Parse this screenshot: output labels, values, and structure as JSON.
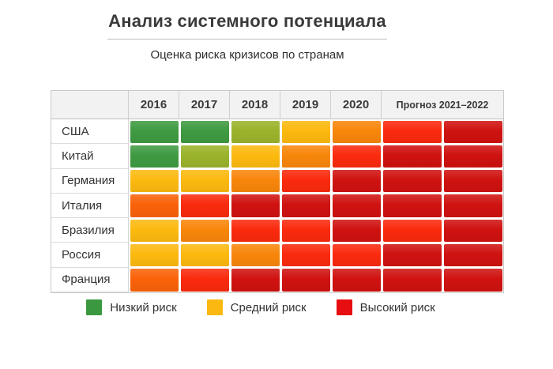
{
  "title": "Анализ системного потенциала",
  "subtitle": "Оценка риска кризисов по странам",
  "table": {
    "year_columns": [
      "2016",
      "2017",
      "2018",
      "2019",
      "2020"
    ],
    "forecast_label": "Прогноз 2021–2022",
    "rows": [
      {
        "country": "США",
        "levels": [
          "green",
          "green",
          "yellow-green",
          "yellow",
          "orange",
          "bright-red",
          "dark-red"
        ]
      },
      {
        "country": "Китай",
        "levels": [
          "green",
          "yellow-green",
          "yellow",
          "orange",
          "bright-red",
          "dark-red",
          "dark-red"
        ]
      },
      {
        "country": "Германия",
        "levels": [
          "yellow",
          "yellow",
          "orange",
          "bright-red",
          "dark-red",
          "dark-red",
          "dark-red"
        ]
      },
      {
        "country": "Италия",
        "levels": [
          "deep-orange",
          "bright-red",
          "dark-red",
          "dark-red",
          "dark-red",
          "dark-red",
          "dark-red"
        ]
      },
      {
        "country": "Бразилия",
        "levels": [
          "yellow",
          "orange",
          "bright-red",
          "bright-red",
          "dark-red",
          "bright-red",
          "dark-red"
        ]
      },
      {
        "country": "Россия",
        "levels": [
          "yellow",
          "yellow",
          "orange",
          "bright-red",
          "bright-red",
          "dark-red",
          "dark-red"
        ]
      },
      {
        "country": "Франция",
        "levels": [
          "deep-orange",
          "bright-red",
          "dark-red",
          "dark-red",
          "dark-red",
          "dark-red",
          "dark-red"
        ]
      }
    ]
  },
  "palette": {
    "green": "#3E9A41",
    "yellow-green": "#9AB32B",
    "yellow": "#FCB90F",
    "orange": "#F8860B",
    "deep-orange": "#FA6209",
    "bright-red": "#FA2A0D",
    "dark-red": "#CF1210"
  },
  "legend": {
    "items": [
      {
        "label": "Низкий риск",
        "color": "#3A9940"
      },
      {
        "label": "Средний риск",
        "color": "#FBB811"
      },
      {
        "label": "Высокий риск",
        "color": "#E70E11"
      }
    ]
  },
  "chart_data": {
    "type": "heatmap",
    "title": "Анализ системного потенциала",
    "subtitle": "Оценка риска кризисов по странам",
    "x_categories": [
      "2016",
      "2017",
      "2018",
      "2019",
      "2020",
      "Прогноз 2021–2022 (1)",
      "Прогноз 2021–2022 (2)"
    ],
    "y_categories": [
      "США",
      "Китай",
      "Германия",
      "Италия",
      "Бразилия",
      "Россия",
      "Франция"
    ],
    "value_scale": "1 = низкий риск (зелёный), 2 = жёлто-зелёный, 3 = жёлтый, 4 = оранжевый, 5 = тёмно-оранжевый, 6 = ярко-красный, 7 = высокий риск (тёмно-красный)",
    "values": [
      [
        1,
        1,
        2,
        3,
        4,
        6,
        7
      ],
      [
        1,
        2,
        3,
        4,
        6,
        7,
        7
      ],
      [
        3,
        3,
        4,
        6,
        7,
        7,
        7
      ],
      [
        5,
        6,
        7,
        7,
        7,
        7,
        7
      ],
      [
        3,
        4,
        6,
        6,
        7,
        6,
        7
      ],
      [
        3,
        3,
        4,
        6,
        6,
        7,
        7
      ],
      [
        5,
        6,
        7,
        7,
        7,
        7,
        7
      ]
    ],
    "legend": [
      "Низкий риск",
      "Средний риск",
      "Высокий риск"
    ],
    "legend_position": "bottom",
    "grid": false
  }
}
